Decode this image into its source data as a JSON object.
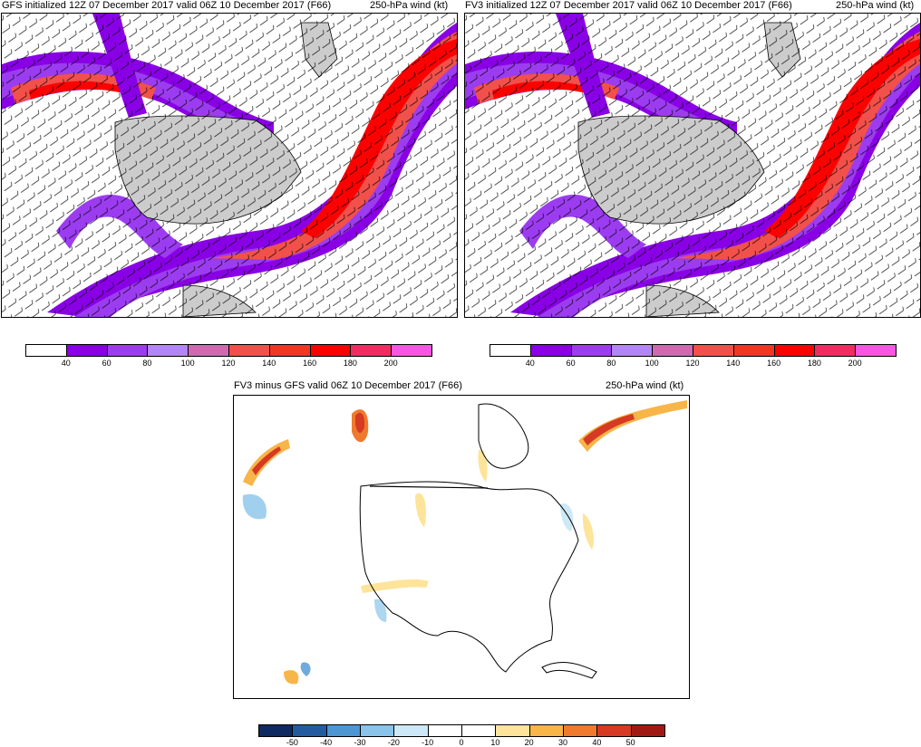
{
  "panels": {
    "gfs": {
      "title_left": "GFS initialized 12Z 07 December 2017 valid 06Z 10 December 2017 (F66)",
      "title_right": "250-hPa wind (kt)"
    },
    "fv3": {
      "title_left": "FV3 initialized 12Z 07 December 2017 valid 06Z 10 December 2017 (F66)",
      "title_right": "250-hPa wind (kt)"
    },
    "diff": {
      "title_left": "FV3 minus GFS valid 06Z 10 December 2017 (F66)",
      "title_right": "250-hPa wind (kt)"
    }
  },
  "wind_colorbar": {
    "colors": [
      "#ffffff",
      "#8a00e6",
      "#9c3cf0",
      "#b286f5",
      "#d06ab0",
      "#f2504a",
      "#f43526",
      "#ff0000",
      "#f52a62",
      "#fa55e0"
    ],
    "labels": [
      "40",
      "60",
      "80",
      "100",
      "120",
      "140",
      "160",
      "180",
      "200"
    ]
  },
  "diff_colorbar": {
    "colors": [
      "#0e2a60",
      "#235c9e",
      "#4c96d2",
      "#8ac4ea",
      "#cde8f6",
      "#ffffff",
      "#ffffff",
      "#fde49a",
      "#f8b548",
      "#ef7a2d",
      "#d63a22",
      "#a01a14"
    ],
    "labels": [
      "-50",
      "-40",
      "-30",
      "-20",
      "-10",
      "0",
      "10",
      "20",
      "30",
      "40",
      "50"
    ]
  },
  "colors": {
    "land": "#cccccc",
    "coast": "#000000",
    "barb": "#000000"
  }
}
